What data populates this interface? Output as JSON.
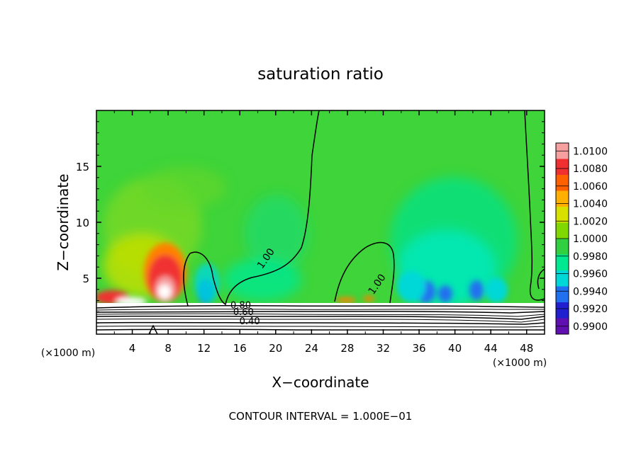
{
  "chart_data": {
    "type": "heatmap",
    "title": "saturation ratio",
    "xlabel": "X−coordinate",
    "ylabel": "Z−coordinate",
    "x_unit": "(×1000 m)",
    "xlim": [
      0,
      50
    ],
    "ylim": [
      0,
      20
    ],
    "x_ticks": [
      4,
      8,
      12,
      16,
      20,
      24,
      28,
      32,
      36,
      40,
      44,
      48
    ],
    "y_ticks": [
      5,
      10,
      15
    ],
    "footer": "CONTOUR INTERVAL = 1.000E−01",
    "colorbar": {
      "labels": [
        "1.0100",
        "1.0080",
        "1.0060",
        "1.0040",
        "1.0020",
        "1.0000",
        "0.9980",
        "0.9960",
        "0.9940",
        "0.9920",
        "0.9900"
      ],
      "colors": [
        "#f7a0a0",
        "#f03030",
        "#ff6000",
        "#ffb000",
        "#d8e000",
        "#80d800",
        "#30d040",
        "#00e890",
        "#00d8d8",
        "#2070f0",
        "#2020d0",
        "#6010b0"
      ]
    },
    "background_color": "#3ed43a",
    "contour_labels": [
      {
        "text": "1.00",
        "x": 19.2,
        "y": 6.6
      },
      {
        "text": "1.00",
        "x": 31.6,
        "y": 4.3
      },
      {
        "text": "0.80",
        "x": 16.1,
        "y": 2.3
      },
      {
        "text": "0.60",
        "x": 16.4,
        "y": 1.7
      },
      {
        "text": "0.40",
        "x": 17.1,
        "y": 0.9
      }
    ]
  }
}
